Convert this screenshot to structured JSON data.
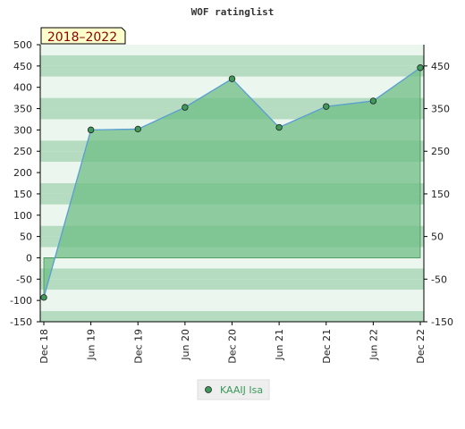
{
  "chart_data": {
    "type": "area",
    "title": "WOF ratinglist",
    "badge": "2018–2022",
    "categories": [
      "Dec 18",
      "Jun 19",
      "Dec 19",
      "Jun 20",
      "Dec 20",
      "Jun 21",
      "Dec 21",
      "Jun 22",
      "Dec 22"
    ],
    "series": [
      {
        "name": "KAAIJ Isa",
        "values": [
          -93,
          300,
          302,
          353,
          420,
          306,
          355,
          368,
          446
        ]
      }
    ],
    "ylim": [
      -150,
      500
    ],
    "yticks_left": [
      500,
      450,
      400,
      350,
      300,
      250,
      200,
      150,
      100,
      50,
      0,
      -50,
      -100,
      -150
    ],
    "yticks_right": [
      450,
      350,
      250,
      150,
      50,
      -50,
      -150
    ],
    "colors": {
      "fill": "#6fbd85",
      "line": "#5a9fd4",
      "marker": "#3f9a5a",
      "band_dark": "#b5dcc0",
      "band_light": "#eaf6ee"
    },
    "legend_position": "bottom-center",
    "grid": false
  }
}
